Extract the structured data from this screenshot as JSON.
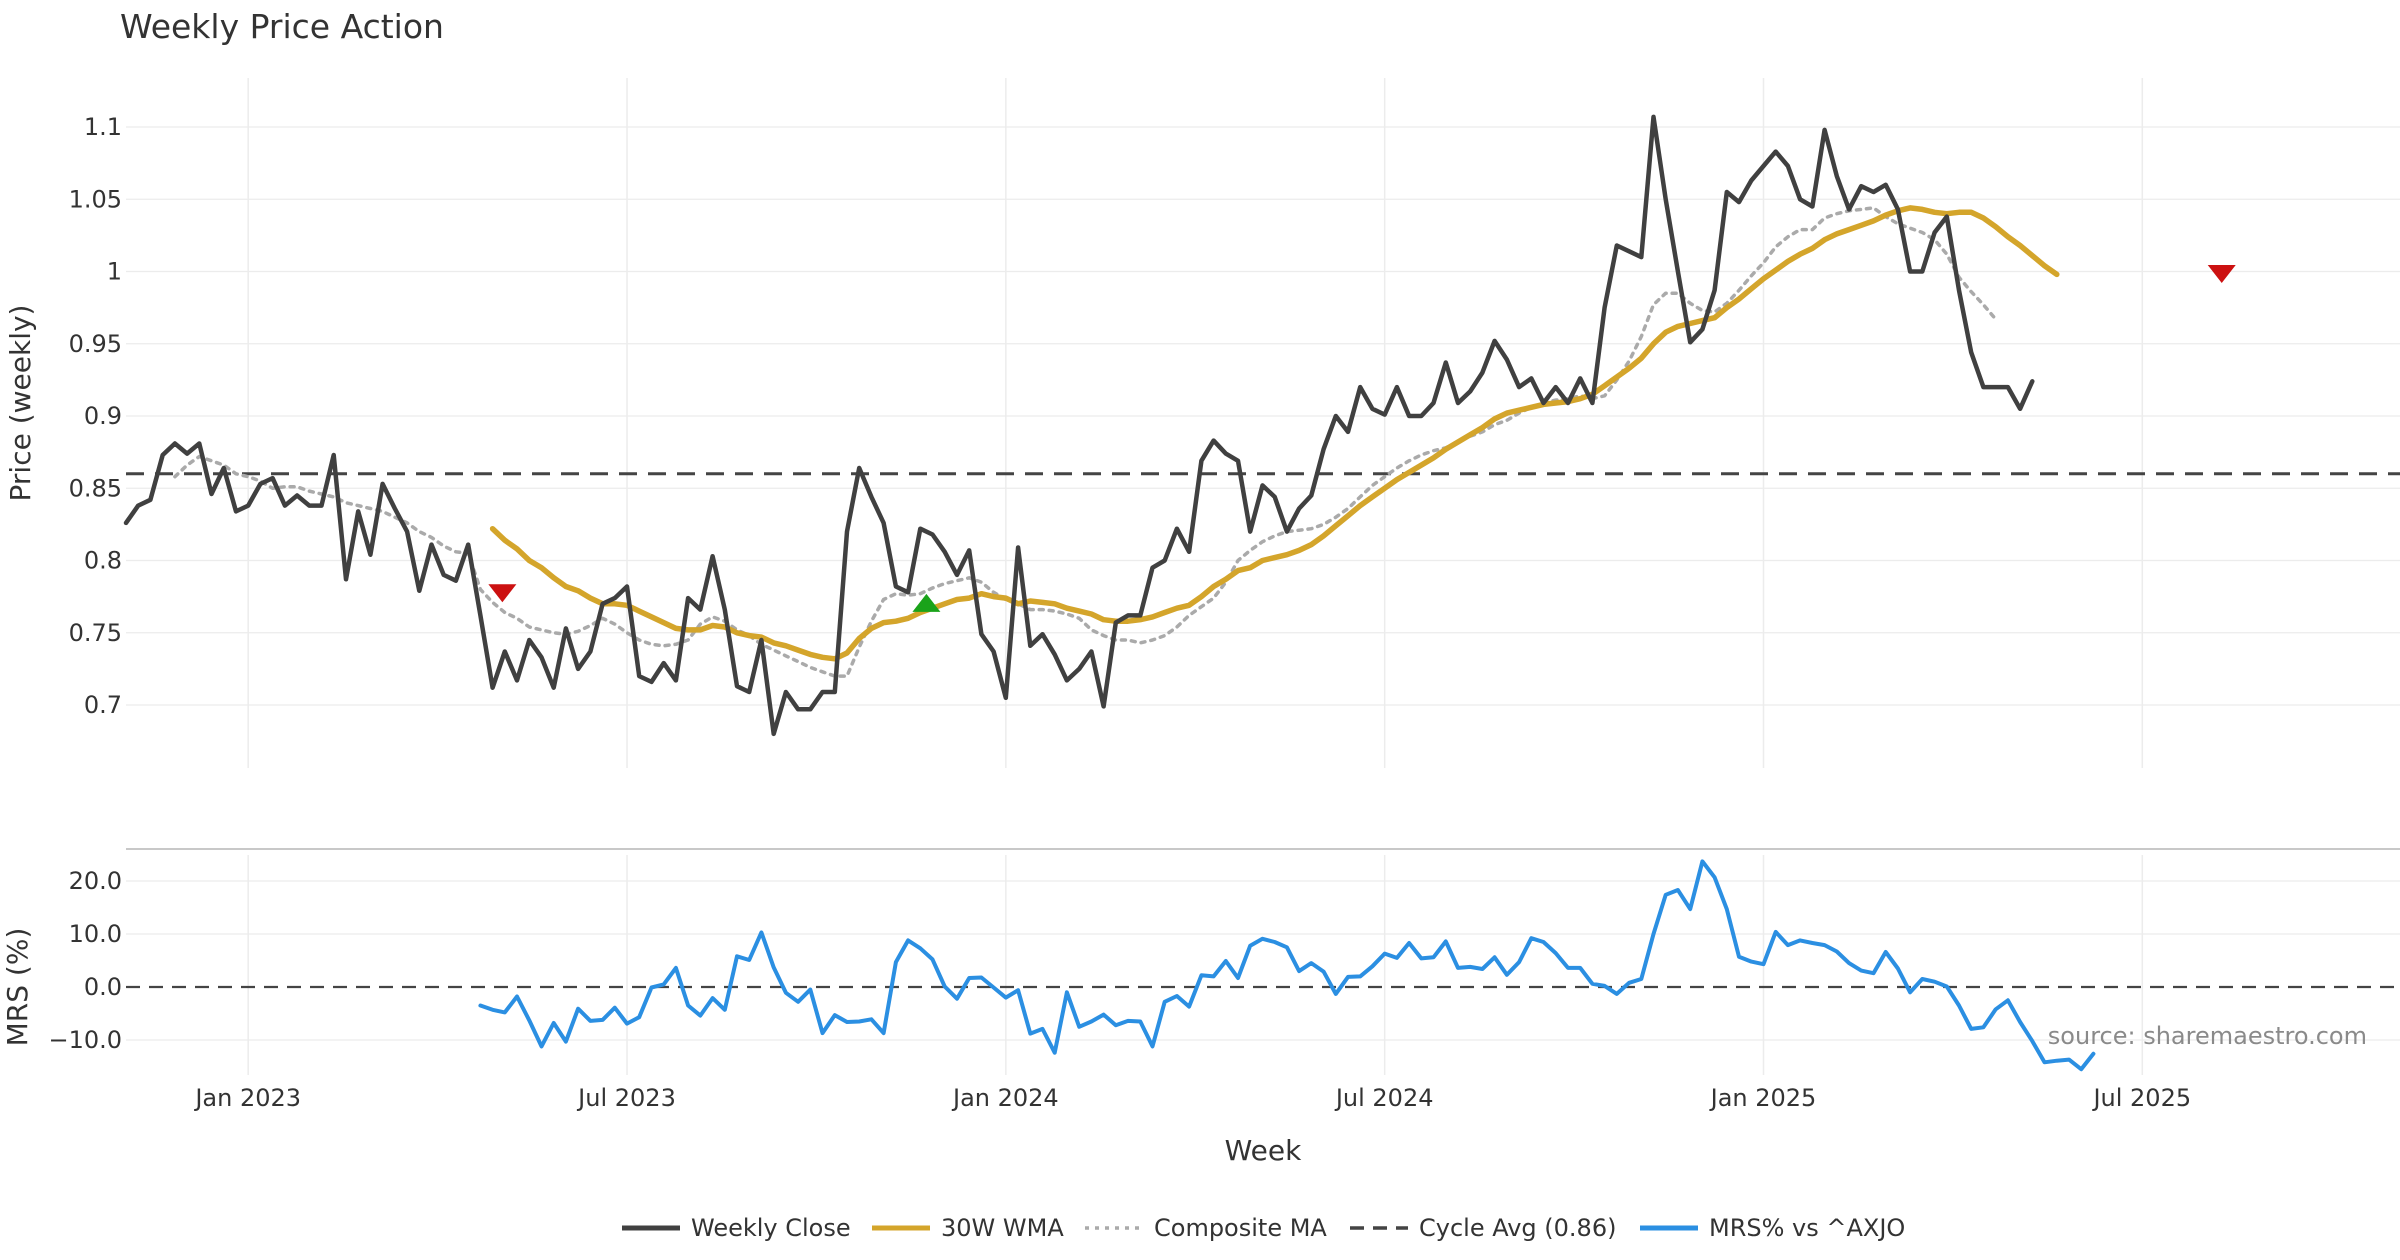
{
  "colors": {
    "close": "#404040",
    "wma": "#d4a52b",
    "composite": "#aaaaaa",
    "cycle": "#444444",
    "mrs": "#2b8fe2",
    "sell": "#cc1111",
    "buy": "#1aa31a",
    "grid": "#ececec"
  },
  "chart_data": [
    {
      "type": "line",
      "title": "Weekly Price Action",
      "xlabel": "",
      "ylabel": "Price (weekly)",
      "ylim": [
        0.655,
        1.13
      ],
      "yticks": [
        0.7,
        0.75,
        0.8,
        0.85,
        0.9,
        0.95,
        1,
        1.05,
        1.1
      ],
      "ytick_labels": [
        "0.7",
        "0.75",
        "0.8",
        "0.85",
        "0.9",
        "0.95",
        "1",
        "1.05",
        "1.1"
      ],
      "grid": true,
      "x_tick_positions": [
        10,
        41,
        72,
        103,
        134,
        165
      ],
      "x_tick_labels": [
        "Jan 2023",
        "Jul 2023",
        "Jan 2024",
        "Jul 2024",
        "Jan 2025",
        "Jul 2025"
      ],
      "cycle_avg": 0.86,
      "series": [
        {
          "name": "Weekly Close",
          "x_start": 0,
          "values": [
            0.826,
            0.838,
            0.842,
            0.873,
            0.881,
            0.874,
            0.881,
            0.846,
            0.864,
            0.834,
            0.838,
            0.853,
            0.857,
            0.838,
            0.845,
            0.838,
            0.838,
            0.873,
            0.787,
            0.834,
            0.804,
            0.853,
            0.836,
            0.82,
            0.779,
            0.811,
            0.79,
            0.786,
            0.811,
            0.762,
            0.712,
            0.737,
            0.717,
            0.745,
            0.733,
            0.712,
            0.753,
            0.725,
            0.737,
            0.77,
            0.774,
            0.782,
            0.72,
            0.716,
            0.729,
            0.717,
            0.774,
            0.766,
            0.803,
            0.766,
            0.713,
            0.709,
            0.745,
            0.68,
            0.709,
            0.697,
            0.697,
            0.709,
            0.709,
            0.82,
            0.864,
            0.844,
            0.826,
            0.782,
            0.778,
            0.822,
            0.818,
            0.806,
            0.79,
            0.807,
            0.749,
            0.737,
            0.705,
            0.809,
            0.741,
            0.749,
            0.735,
            0.717,
            0.725,
            0.737,
            0.699,
            0.757,
            0.762,
            0.762,
            0.795,
            0.8,
            0.822,
            0.806,
            0.869,
            0.883,
            0.874,
            0.869,
            0.82,
            0.852,
            0.844,
            0.82,
            0.836,
            0.845,
            0.877,
            0.9,
            0.889,
            0.92,
            0.905,
            0.901,
            0.92,
            0.9,
            0.9,
            0.909,
            0.937,
            0.909,
            0.917,
            0.93,
            0.952,
            0.939,
            0.92,
            0.926,
            0.909,
            0.92,
            0.909,
            0.926,
            0.909,
            0.975,
            1.018,
            1.014,
            1.01,
            1.107,
            1.05,
            1.0,
            0.951,
            0.96,
            0.987,
            1.055,
            1.048,
            1.063,
            1.073,
            1.083,
            1.073,
            1.05,
            1.045,
            1.098,
            1.066,
            1.043,
            1.059,
            1.055,
            1.06,
            1.043,
            1.0,
            1.0,
            1.027,
            1.038,
            0.987,
            0.944,
            0.92,
            0.92,
            0.92,
            0.905,
            0.924
          ]
        },
        {
          "name": "30W WMA",
          "x_start": 30,
          "values": [
            0.822,
            0.814,
            0.808,
            0.8,
            0.795,
            0.788,
            0.782,
            0.779,
            0.774,
            0.77,
            0.77,
            0.769,
            0.765,
            0.761,
            0.757,
            0.753,
            0.752,
            0.752,
            0.755,
            0.754,
            0.75,
            0.748,
            0.747,
            0.743,
            0.741,
            0.738,
            0.735,
            0.733,
            0.732,
            0.736,
            0.746,
            0.753,
            0.757,
            0.758,
            0.76,
            0.764,
            0.767,
            0.77,
            0.773,
            0.774,
            0.777,
            0.775,
            0.774,
            0.77,
            0.772,
            0.771,
            0.77,
            0.767,
            0.765,
            0.763,
            0.759,
            0.758,
            0.758,
            0.759,
            0.761,
            0.764,
            0.767,
            0.769,
            0.775,
            0.782,
            0.787,
            0.793,
            0.795,
            0.8,
            0.802,
            0.804,
            0.807,
            0.811,
            0.817,
            0.824,
            0.831,
            0.838,
            0.844,
            0.85,
            0.856,
            0.861,
            0.866,
            0.871,
            0.877,
            0.882,
            0.887,
            0.892,
            0.898,
            0.902,
            0.904,
            0.906,
            0.908,
            0.909,
            0.91,
            0.912,
            0.915,
            0.921,
            0.927,
            0.933,
            0.94,
            0.95,
            0.958,
            0.962,
            0.964,
            0.966,
            0.968,
            0.975,
            0.981,
            0.988,
            0.995,
            1.001,
            1.007,
            1.012,
            1.016,
            1.022,
            1.026,
            1.029,
            1.032,
            1.035,
            1.039,
            1.042,
            1.044,
            1.043,
            1.041,
            1.04,
            1.041,
            1.041,
            1.037,
            1.031,
            1.024,
            1.018,
            1.011,
            1.004,
            0.998
          ]
        },
        {
          "name": "Composite MA",
          "x_start": 4,
          "values": [
            0.858,
            0.866,
            0.872,
            0.869,
            0.866,
            0.86,
            0.858,
            0.855,
            0.85,
            0.851,
            0.851,
            0.848,
            0.846,
            0.844,
            0.84,
            0.838,
            0.836,
            0.834,
            0.83,
            0.826,
            0.82,
            0.816,
            0.81,
            0.806,
            0.805,
            0.78,
            0.771,
            0.764,
            0.76,
            0.754,
            0.752,
            0.75,
            0.749,
            0.751,
            0.755,
            0.76,
            0.756,
            0.75,
            0.745,
            0.742,
            0.741,
            0.742,
            0.745,
            0.756,
            0.761,
            0.758,
            0.752,
            0.748,
            0.742,
            0.738,
            0.734,
            0.73,
            0.726,
            0.723,
            0.72,
            0.72,
            0.74,
            0.758,
            0.773,
            0.777,
            0.776,
            0.777,
            0.781,
            0.784,
            0.786,
            0.788,
            0.785,
            0.778,
            0.773,
            0.77,
            0.766,
            0.766,
            0.765,
            0.763,
            0.76,
            0.752,
            0.748,
            0.745,
            0.745,
            0.743,
            0.745,
            0.748,
            0.754,
            0.762,
            0.768,
            0.774,
            0.785,
            0.8,
            0.807,
            0.813,
            0.817,
            0.82,
            0.821,
            0.822,
            0.825,
            0.83,
            0.836,
            0.844,
            0.852,
            0.858,
            0.864,
            0.869,
            0.873,
            0.876,
            0.878,
            0.882,
            0.886,
            0.889,
            0.894,
            0.897,
            0.902,
            0.906,
            0.909,
            0.911,
            0.912,
            0.914,
            0.912,
            0.914,
            0.925,
            0.938,
            0.955,
            0.977,
            0.985,
            0.985,
            0.978,
            0.973,
            0.972,
            0.978,
            0.987,
            0.997,
            1.006,
            1.017,
            1.024,
            1.029,
            1.029,
            1.037,
            1.04,
            1.042,
            1.043,
            1.044,
            1.038,
            1.033,
            1.03,
            1.027,
            1.022,
            1.012,
            0.996,
            0.986,
            0.977,
            0.967
          ]
        }
      ],
      "signals": [
        {
          "type": "sell",
          "x": 30.8,
          "y": 0.778
        },
        {
          "type": "buy",
          "x": 65.5,
          "y": 0.77
        },
        {
          "type": "sell",
          "x": 171.5,
          "y": 0.999
        }
      ],
      "source": "source: sharemaestro.com"
    },
    {
      "type": "line",
      "title": "",
      "xlabel": "Week",
      "ylabel": "MRS (%)",
      "ylim": [
        -15.5,
        26
      ],
      "yticks": [
        -10,
        0,
        10,
        20
      ],
      "ytick_labels": [
        "−10.0",
        "0.0",
        "10.0",
        "20.0"
      ],
      "zero_line": 0,
      "series": [
        {
          "name": "MRS% vs ^AXJO",
          "x_start": 29,
          "values": [
            -3.5,
            -4.3,
            -4.8,
            -1.8,
            -6.3,
            -11.2,
            -6.8,
            -10.3,
            -4.1,
            -6.4,
            -6.2,
            -3.9,
            -6.9,
            -5.7,
            -0.1,
            0.5,
            3.6,
            -3.5,
            -5.4,
            -2.1,
            -4.3,
            5.8,
            5.1,
            10.3,
            3.7,
            -1.1,
            -2.8,
            -0.5,
            -8.7,
            -5.3,
            -6.6,
            -6.5,
            -6.1,
            -8.7,
            4.7,
            8.8,
            7.3,
            5.2,
            0.1,
            -2.2,
            1.7,
            1.8,
            -0.1,
            -2.0,
            -0.6,
            -8.8,
            -7.9,
            -12.4,
            -1.0,
            -7.5,
            -6.5,
            -5.2,
            -7.2,
            -6.4,
            -6.5,
            -11.2,
            -2.8,
            -1.7,
            -3.7,
            2.2,
            2.0,
            4.9,
            1.7,
            7.8,
            9.1,
            8.5,
            7.5,
            3.0,
            4.5,
            2.9,
            -1.3,
            1.9,
            2.0,
            3.9,
            6.3,
            5.5,
            8.3,
            5.4,
            5.6,
            8.6,
            3.6,
            3.8,
            3.4,
            5.6,
            2.3,
            4.7,
            9.2,
            8.5,
            6.4,
            3.6,
            3.6,
            0.6,
            0.2,
            -1.3,
            0.8,
            1.5,
            10.0,
            17.4,
            18.3,
            14.7,
            23.7,
            20.7,
            14.7,
            5.7,
            4.8,
            4.3,
            10.4,
            7.9,
            8.8,
            8.3,
            7.9,
            6.7,
            4.5,
            3.1,
            2.6,
            6.6,
            3.5,
            -1.0,
            1.5,
            1.0,
            0.1,
            -3.5,
            -7.9,
            -7.6,
            -4.2,
            -2.5,
            -6.6,
            -10.2,
            -14.2,
            -13.9,
            -13.7,
            -15.5,
            -12.6
          ]
        }
      ]
    }
  ],
  "legend": {
    "items": [
      {
        "label": "Weekly Close",
        "style": "solid",
        "color": "#404040"
      },
      {
        "label": "30W WMA",
        "style": "solid",
        "color": "#d4a52b"
      },
      {
        "label": "Composite MA",
        "style": "dotted",
        "color": "#aaaaaa"
      },
      {
        "label": "Cycle Avg (0.86)",
        "style": "dashed",
        "color": "#444444"
      },
      {
        "label": "MRS% vs ^AXJO",
        "style": "solid",
        "color": "#2b8fe2"
      }
    ]
  }
}
